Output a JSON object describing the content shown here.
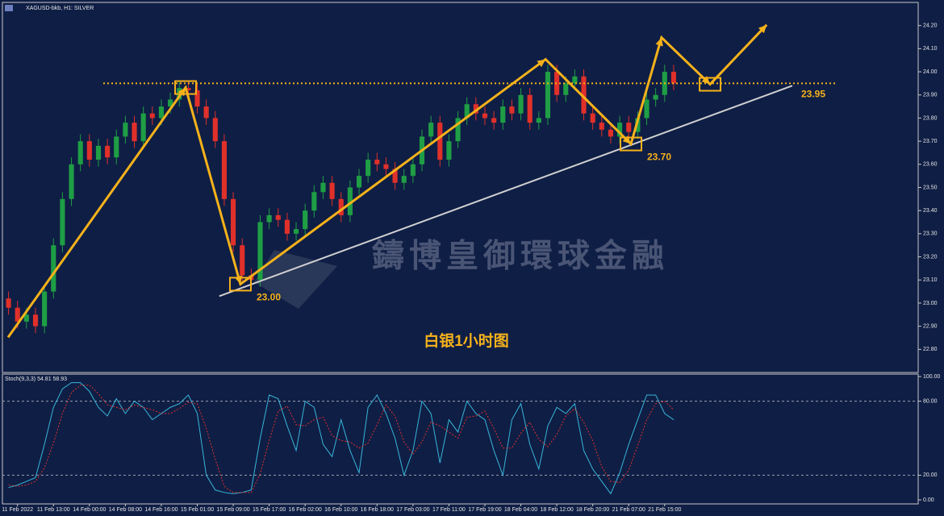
{
  "header": "XAGUSD-bkb, H1: SILVER",
  "chart_data": [
    {
      "type": "candlestick",
      "title": "白银1小时图",
      "watermark": "鑄博皇御環球金融",
      "xlim": [
        0,
        203
      ],
      "ylim": [
        22.7,
        24.3
      ],
      "xticks": [
        {
          "value": 3,
          "label": "11 Feb 2022"
        },
        {
          "value": 11,
          "label": "11 Feb 13:00"
        },
        {
          "value": 19,
          "label": "14 Feb 00:00"
        },
        {
          "value": 27,
          "label": "14 Feb 08:00"
        },
        {
          "value": 35,
          "label": "14 Feb 16:00"
        },
        {
          "value": 43,
          "label": "15 Feb 01:00"
        },
        {
          "value": 51,
          "label": "15 Feb 09:00"
        },
        {
          "value": 59,
          "label": "15 Feb 17:00"
        },
        {
          "value": 67,
          "label": "16 Feb 02:00"
        },
        {
          "value": 75,
          "label": "16 Feb 10:00"
        },
        {
          "value": 83,
          "label": "16 Feb 18:00"
        },
        {
          "value": 91,
          "label": "17 Feb 03:00"
        },
        {
          "value": 99,
          "label": "17 Feb 11:00"
        },
        {
          "value": 107,
          "label": "17 Feb 19:00"
        },
        {
          "value": 115,
          "label": "18 Feb 04:00"
        },
        {
          "value": 123,
          "label": "18 Feb 12:00"
        },
        {
          "value": 131,
          "label": "18 Feb 20:00"
        },
        {
          "value": 139,
          "label": "21 Feb 07:00"
        },
        {
          "value": 147,
          "label": "21 Feb 15:00"
        }
      ],
      "yticks": [
        {
          "value": 24.2,
          "label": "24.20"
        },
        {
          "value": 24.1,
          "label": "24.10"
        },
        {
          "value": 24.0,
          "label": "24.00"
        },
        {
          "value": 23.9,
          "label": "23.90"
        },
        {
          "value": 23.8,
          "label": "23.80"
        },
        {
          "value": 23.7,
          "label": "23.70"
        },
        {
          "value": 23.6,
          "label": "23.60"
        },
        {
          "value": 23.5,
          "label": "23.50"
        },
        {
          "value": 23.4,
          "label": "23.40"
        },
        {
          "value": 23.3,
          "label": "23.30"
        },
        {
          "value": 23.2,
          "label": "23.20"
        },
        {
          "value": 23.1,
          "label": "23.10"
        },
        {
          "value": 23.0,
          "label": "23.00"
        },
        {
          "value": 22.9,
          "label": "22.90"
        },
        {
          "value": 22.8,
          "label": "22.80"
        }
      ],
      "up_color": "#1f9e45",
      "down_color": "#e0302a",
      "x": [
        1,
        3,
        5,
        7,
        9,
        11,
        13,
        15,
        17,
        19,
        21,
        23,
        25,
        27,
        29,
        31,
        33,
        35,
        37,
        39,
        41,
        43,
        45,
        47,
        49,
        51,
        53,
        55,
        57,
        59,
        61,
        63,
        65,
        67,
        69,
        71,
        73,
        75,
        77,
        79,
        81,
        83,
        85,
        87,
        89,
        91,
        93,
        95,
        97,
        99,
        101,
        103,
        105,
        107,
        109,
        111,
        113,
        115,
        117,
        119,
        121,
        123,
        125,
        127,
        129,
        131,
        133,
        135,
        137,
        139,
        141,
        143,
        145,
        147,
        149
      ],
      "open": [
        23.02,
        22.98,
        22.92,
        22.95,
        22.9,
        23.05,
        23.25,
        23.45,
        23.6,
        23.7,
        23.62,
        23.68,
        23.63,
        23.72,
        23.78,
        23.7,
        23.82,
        23.8,
        23.85,
        23.88,
        23.93,
        23.92,
        23.85,
        23.8,
        23.7,
        23.45,
        23.25,
        23.12,
        23.1,
        23.35,
        23.38,
        23.36,
        23.3,
        23.32,
        23.4,
        23.48,
        23.52,
        23.45,
        23.38,
        23.5,
        23.55,
        23.62,
        23.6,
        23.58,
        23.52,
        23.55,
        23.6,
        23.72,
        23.78,
        23.62,
        23.7,
        23.8,
        23.86,
        23.82,
        23.8,
        23.78,
        23.85,
        23.82,
        23.9,
        23.78,
        23.8,
        24.0,
        23.9,
        23.95,
        23.98,
        23.82,
        23.78,
        23.75,
        23.72,
        23.78,
        23.74,
        23.8,
        23.88,
        23.9,
        24.0
      ],
      "high": [
        23.05,
        23.01,
        22.98,
        22.98,
        23.08,
        23.28,
        23.48,
        23.63,
        23.73,
        23.73,
        23.71,
        23.71,
        23.75,
        23.81,
        23.81,
        23.85,
        23.85,
        23.88,
        23.91,
        23.96,
        23.96,
        23.95,
        23.88,
        23.83,
        23.73,
        23.48,
        23.28,
        23.15,
        23.38,
        23.41,
        23.41,
        23.39,
        23.35,
        23.43,
        23.51,
        23.55,
        23.55,
        23.48,
        23.53,
        23.58,
        23.65,
        23.65,
        23.63,
        23.61,
        23.58,
        23.63,
        23.75,
        23.81,
        23.81,
        23.73,
        23.83,
        23.89,
        23.89,
        23.85,
        23.83,
        23.88,
        23.88,
        23.93,
        23.93,
        23.83,
        24.03,
        24.03,
        23.98,
        24.01,
        24.01,
        23.85,
        23.81,
        23.78,
        23.81,
        23.81,
        23.83,
        23.91,
        23.93,
        24.03,
        24.03
      ],
      "low": [
        22.95,
        22.89,
        22.89,
        22.87,
        22.87,
        23.02,
        23.22,
        23.42,
        23.57,
        23.59,
        23.59,
        23.6,
        23.6,
        23.69,
        23.67,
        23.67,
        23.77,
        23.77,
        23.82,
        23.85,
        23.89,
        23.82,
        23.77,
        23.67,
        23.42,
        23.22,
        23.09,
        23.07,
        23.07,
        23.32,
        23.33,
        23.27,
        23.27,
        23.29,
        23.37,
        23.45,
        23.42,
        23.35,
        23.35,
        23.47,
        23.52,
        23.57,
        23.55,
        23.49,
        23.49,
        23.52,
        23.57,
        23.69,
        23.59,
        23.59,
        23.67,
        23.77,
        23.79,
        23.77,
        23.75,
        23.75,
        23.79,
        23.79,
        23.75,
        23.75,
        23.77,
        23.87,
        23.87,
        23.92,
        23.79,
        23.75,
        23.72,
        23.69,
        23.69,
        23.71,
        23.71,
        23.77,
        23.85,
        23.87,
        23.92
      ],
      "close": [
        22.98,
        22.92,
        22.95,
        22.9,
        23.05,
        23.25,
        23.45,
        23.6,
        23.7,
        23.62,
        23.68,
        23.63,
        23.72,
        23.78,
        23.7,
        23.82,
        23.8,
        23.85,
        23.88,
        23.93,
        23.92,
        23.85,
        23.8,
        23.7,
        23.45,
        23.25,
        23.12,
        23.1,
        23.35,
        23.38,
        23.36,
        23.3,
        23.32,
        23.4,
        23.48,
        23.52,
        23.45,
        23.38,
        23.5,
        23.55,
        23.62,
        23.6,
        23.58,
        23.52,
        23.55,
        23.6,
        23.72,
        23.78,
        23.62,
        23.7,
        23.8,
        23.86,
        23.82,
        23.8,
        23.78,
        23.85,
        23.82,
        23.9,
        23.78,
        23.8,
        24.0,
        23.9,
        23.95,
        23.98,
        23.82,
        23.78,
        23.75,
        23.72,
        23.78,
        23.74,
        23.8,
        23.88,
        23.9,
        24.0,
        23.95
      ],
      "zigzag": {
        "color": "#f5b21b",
        "x": [
          0.9,
          40.4,
          52.6,
          120.5,
          139.5,
          146.3,
          157.1,
          169.7
        ],
        "y": [
          22.852,
          23.932,
          23.082,
          24.054,
          23.688,
          24.148,
          23.946,
          24.203
        ]
      },
      "trendline": {
        "color": "#d0d0d0",
        "x": [
          47.9,
          175.4
        ],
        "y": [
          23.03,
          23.94
        ]
      },
      "resistance": {
        "value": 23.95,
        "label": "23.95"
      },
      "point_labels": [
        "23.00",
        "23.70"
      ]
    },
    {
      "type": "line",
      "title": "Stoch(9,3,3) 54.81 58.93",
      "xlim": [
        0,
        203
      ],
      "ylim": [
        0,
        100
      ],
      "yticks": [
        {
          "value": 100,
          "label": "100.00"
        },
        {
          "value": 80,
          "label": "80.00"
        },
        {
          "value": 20,
          "label": "20.00"
        },
        {
          "value": 0,
          "label": "0.00"
        }
      ],
      "levels": [
        80,
        20
      ],
      "x": [
        1,
        3,
        5,
        7,
        9,
        11,
        13,
        15,
        17,
        19,
        21,
        23,
        25,
        27,
        29,
        31,
        33,
        35,
        37,
        39,
        41,
        43,
        45,
        47,
        49,
        51,
        53,
        55,
        57,
        59,
        61,
        63,
        65,
        67,
        69,
        71,
        73,
        75,
        77,
        79,
        81,
        83,
        85,
        87,
        89,
        91,
        93,
        95,
        97,
        99,
        101,
        103,
        105,
        107,
        109,
        111,
        113,
        115,
        117,
        119,
        121,
        123,
        125,
        127,
        129,
        131,
        133,
        135,
        137,
        139,
        141,
        143,
        145,
        147,
        149
      ],
      "series": [
        {
          "color": "#38b6d8",
          "dashed": false,
          "values": [
            10,
            12,
            15,
            18,
            45,
            75,
            90,
            95,
            95,
            88,
            75,
            68,
            82,
            70,
            80,
            75,
            65,
            70,
            75,
            78,
            85,
            70,
            20,
            8,
            6,
            5,
            6,
            8,
            50,
            85,
            82,
            60,
            40,
            80,
            75,
            45,
            35,
            65,
            40,
            22,
            75,
            85,
            70,
            50,
            20,
            40,
            80,
            70,
            30,
            65,
            55,
            80,
            70,
            65,
            40,
            20,
            65,
            78,
            45,
            25,
            60,
            75,
            70,
            78,
            40,
            25,
            15,
            5,
            22,
            45,
            65,
            85,
            85,
            70,
            65
          ]
        },
        {
          "color": "#e0302a",
          "dashed": true,
          "values": [
            12,
            11,
            12,
            15,
            26,
            46,
            70,
            87,
            93,
            93,
            86,
            77,
            75,
            73,
            77,
            75,
            73,
            70,
            70,
            74,
            79,
            78,
            58,
            33,
            11,
            6,
            6,
            6,
            21,
            48,
            72,
            76,
            61,
            60,
            65,
            67,
            52,
            48,
            47,
            42,
            46,
            61,
            77,
            68,
            47,
            37,
            47,
            63,
            60,
            55,
            50,
            67,
            68,
            72,
            58,
            42,
            42,
            54,
            63,
            49,
            43,
            53,
            68,
            74,
            63,
            48,
            27,
            15,
            14,
            24,
            44,
            65,
            78,
            80,
            73
          ]
        }
      ]
    }
  ]
}
